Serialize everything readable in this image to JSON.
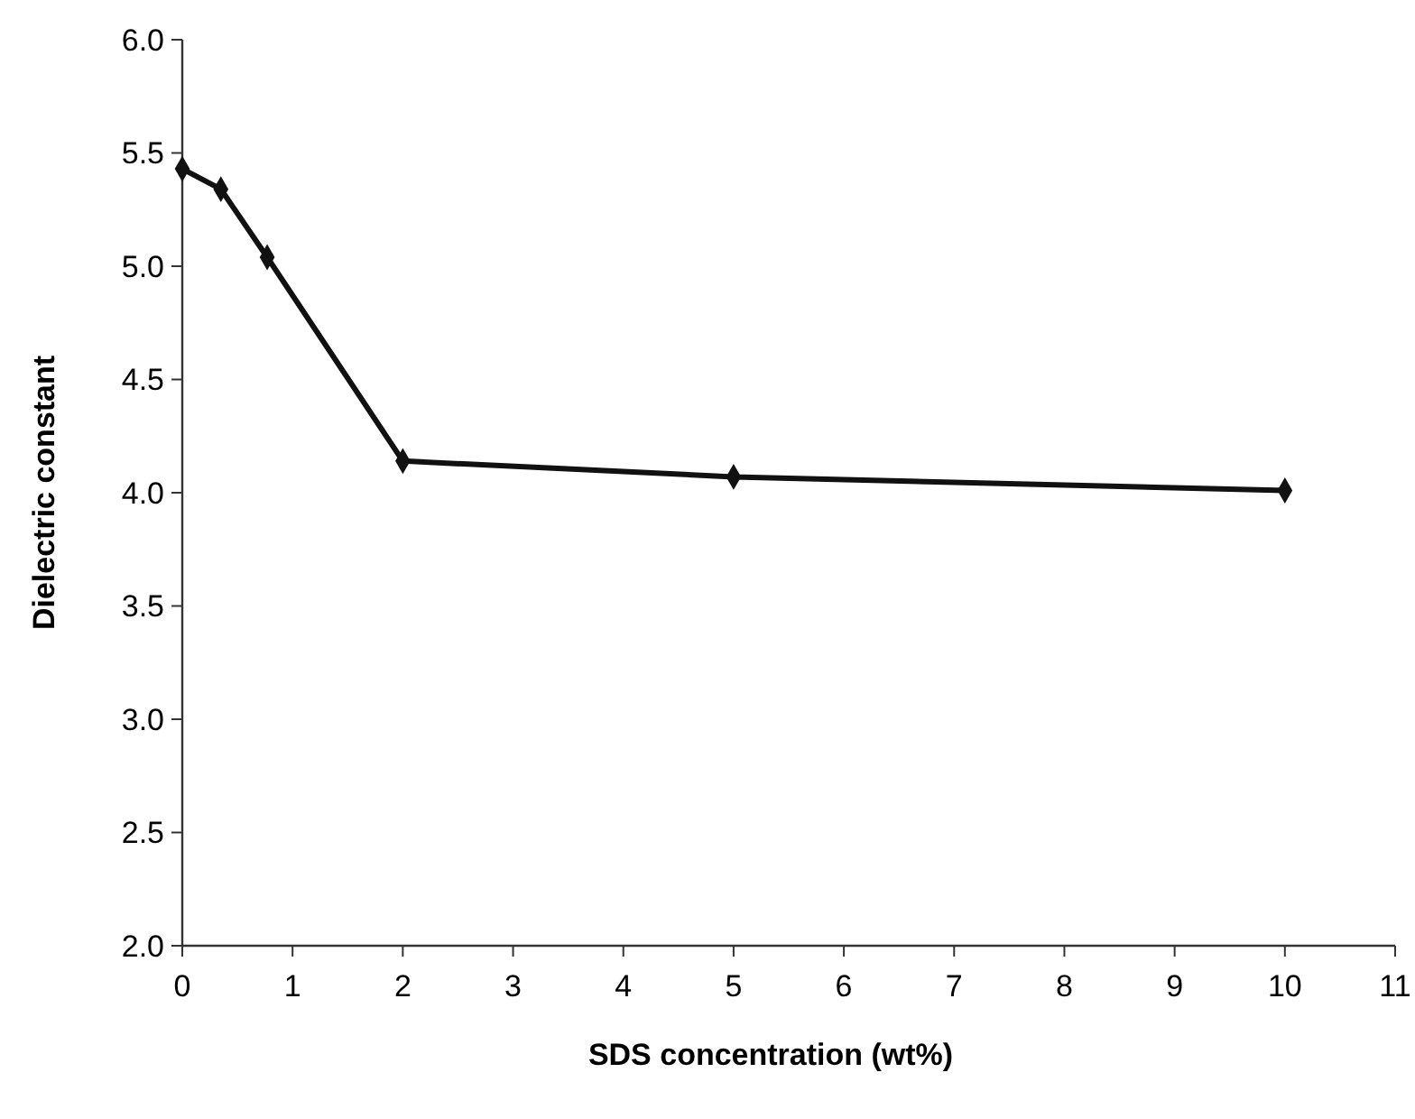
{
  "chart_data": {
    "type": "line",
    "xlabel": "SDS concentration (wt%)",
    "ylabel": "Dielectric constant",
    "x": [
      0,
      0.35,
      0.77,
      2,
      5,
      10
    ],
    "series": [
      {
        "color": "#111111",
        "values": [
          5.43,
          5.34,
          5.04,
          4.14,
          4.07,
          4.01
        ]
      }
    ],
    "xlim": [
      0,
      11
    ],
    "xticks": [
      0,
      1,
      2,
      3,
      4,
      5,
      6,
      7,
      8,
      9,
      10,
      11
    ],
    "ylim": [
      2,
      6
    ],
    "yticks": [
      {
        "value": 2,
        "label": "2.0"
      },
      {
        "value": 2.5,
        "label": "2.5"
      },
      {
        "value": 3,
        "label": "3.0"
      },
      {
        "value": 3.5,
        "label": "3.5"
      },
      {
        "value": 4,
        "label": "4.0"
      },
      {
        "value": 4.5,
        "label": "4.5"
      },
      {
        "value": 5,
        "label": "5.0"
      },
      {
        "value": 5.5,
        "label": "5.5"
      },
      {
        "value": 6,
        "label": "6.0"
      }
    ],
    "marker": "diamond",
    "line_style": "solid"
  }
}
